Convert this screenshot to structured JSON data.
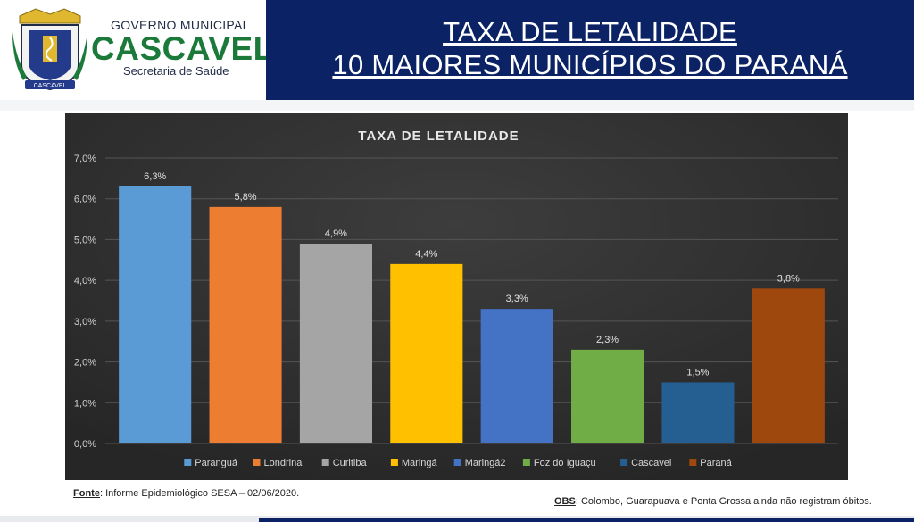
{
  "header": {
    "gov_label": "GOVERNO MUNICIPAL",
    "city": "CASCAVEL",
    "secretaria": "Secretaria de Saúde",
    "crest_text": "CASCAVEL",
    "title_line1": "TAXA DE LETALIDADE",
    "title_line2": "10 MAIORES MUNICÍPIOS DO PARANÁ"
  },
  "footer": {
    "fonte_label": "Fonte",
    "fonte_text": ": Informe Epidemiológico SESA – 02/06/2020.",
    "obs_label": "OBS",
    "obs_text": ": Colombo, Guarapuava e Ponta Grossa ainda não registram óbitos."
  },
  "colors": {
    "header_bg": "#0b2265",
    "chart_bg": "#2f2f2f",
    "brand_green": "#1b7a3a"
  },
  "chart_data": {
    "type": "bar",
    "title": "TAXA DE LETALIDADE",
    "xlabel": "",
    "ylabel": "",
    "ylim": [
      0,
      7
    ],
    "y_ticks": [
      "0,0%",
      "1,0%",
      "2,0%",
      "3,0%",
      "4,0%",
      "5,0%",
      "6,0%",
      "7,0%"
    ],
    "grid": true,
    "legend_position": "bottom",
    "series": [
      {
        "name": "Paranguá",
        "value": 6.3,
        "label": "6,3%",
        "color": "#5b9bd5"
      },
      {
        "name": "Londrina",
        "value": 5.8,
        "label": "5,8%",
        "color": "#ed7d31"
      },
      {
        "name": "Curitiba",
        "value": 4.9,
        "label": "4,9%",
        "color": "#a5a5a5"
      },
      {
        "name": "Maringá",
        "value": 4.4,
        "label": "4,4%",
        "color": "#ffc000"
      },
      {
        "name": "Maringá2",
        "value": 3.3,
        "label": "3,3%",
        "color": "#4472c4"
      },
      {
        "name": "Foz do Iguaçu",
        "value": 2.3,
        "label": "2,3%",
        "color": "#70ad47"
      },
      {
        "name": "Cascavel",
        "value": 1.5,
        "label": "1,5%",
        "color": "#255e91"
      },
      {
        "name": "Paraná",
        "value": 3.8,
        "label": "3,8%",
        "color": "#9e480e"
      }
    ]
  }
}
